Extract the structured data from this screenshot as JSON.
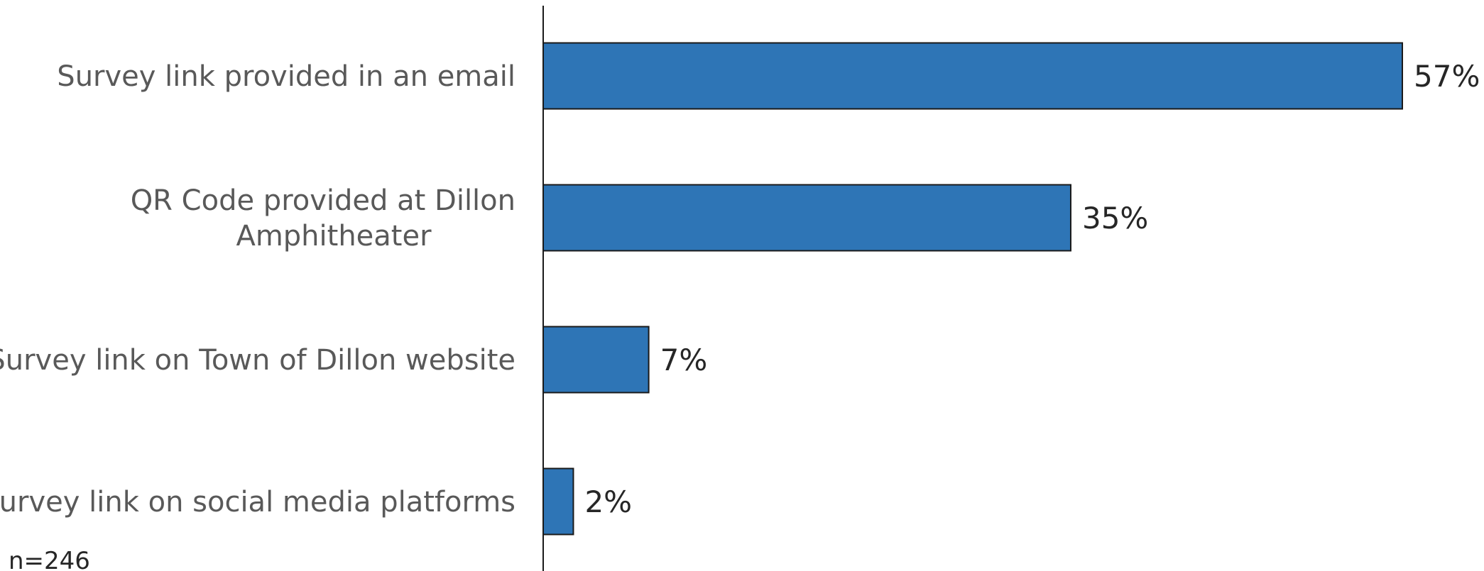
{
  "chart_data": {
    "type": "bar",
    "orientation": "horizontal",
    "categories": [
      [
        "Survey link provided in an email"
      ],
      [
        "QR Code provided at Dillon",
        "Amphitheater"
      ],
      [
        "Survey link on Town of Dillon website"
      ],
      [
        "Survey link on social media platforms"
      ]
    ],
    "values": [
      57,
      35,
      7,
      2
    ],
    "value_labels": [
      "57%",
      "35%",
      "7%",
      "2%"
    ],
    "xlim": [
      0,
      57
    ],
    "grid": false,
    "bar_color": "#2e75b6",
    "note": "n=246"
  }
}
